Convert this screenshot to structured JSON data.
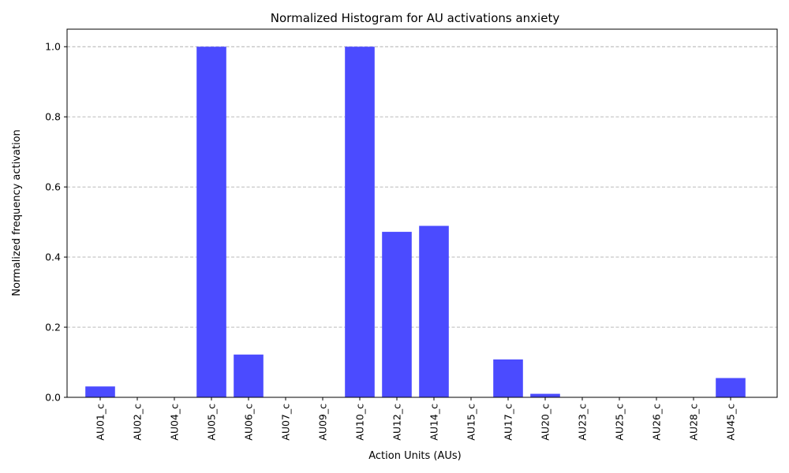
{
  "chart_data": {
    "type": "bar",
    "title": "Normalized Histogram for AU activations anxiety",
    "xlabel": "Action Units (AUs)",
    "ylabel": "Normalized frequency activation",
    "categories": [
      "AU01_c",
      "AU02_c",
      "AU04_c",
      "AU05_c",
      "AU06_c",
      "AU07_c",
      "AU09_c",
      "AU10_c",
      "AU12_c",
      "AU14_c",
      "AU15_c",
      "AU17_c",
      "AU20_c",
      "AU23_c",
      "AU25_c",
      "AU26_c",
      "AU28_c",
      "AU45_c"
    ],
    "values": [
      0.031,
      0.0,
      0.0,
      1.0,
      0.122,
      0.0,
      0.0,
      1.0,
      0.472,
      0.489,
      0.0,
      0.108,
      0.01,
      0.0,
      0.0,
      0.0,
      0.0,
      0.055
    ],
    "ylim": [
      0,
      1.05
    ],
    "yticks": [
      "0.0",
      "0.2",
      "0.4",
      "0.6",
      "0.8",
      "1.0"
    ],
    "grid": "y-dashed",
    "bar_color": "#4b4bff"
  }
}
